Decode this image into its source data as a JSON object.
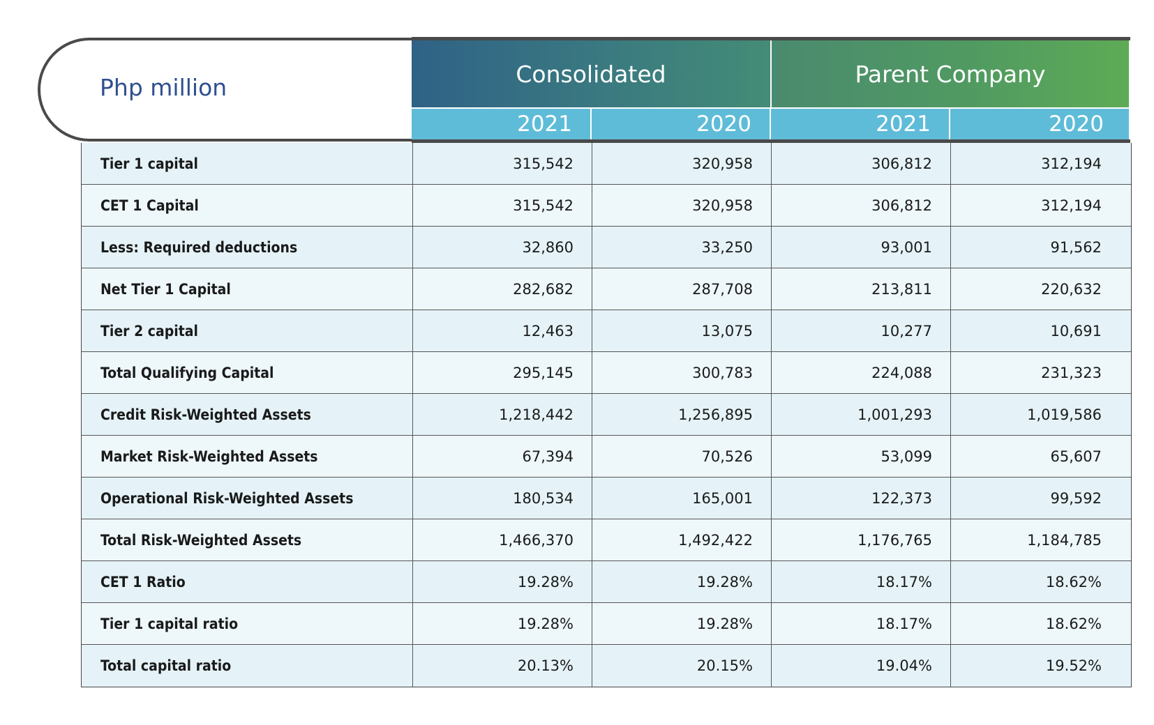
{
  "header": {
    "unit_label": "Php million",
    "groups": [
      "Consolidated",
      "Parent Company"
    ],
    "years": [
      "2021",
      "2020",
      "2021",
      "2020"
    ]
  },
  "rows": [
    {
      "label": "Tier 1 capital",
      "values": [
        "315,542",
        "320,958",
        "306,812",
        "312,194"
      ]
    },
    {
      "label": "CET 1 Capital",
      "values": [
        "315,542",
        "320,958",
        "306,812",
        "312,194"
      ]
    },
    {
      "label": "Less: Required deductions",
      "values": [
        "32,860",
        "33,250",
        "93,001",
        "91,562"
      ]
    },
    {
      "label": "Net Tier 1 Capital",
      "values": [
        "282,682",
        "287,708",
        "213,811",
        "220,632"
      ]
    },
    {
      "label": "Tier 2 capital",
      "values": [
        "12,463",
        "13,075",
        "10,277",
        "10,691"
      ]
    },
    {
      "label": "Total Qualifying Capital",
      "values": [
        "295,145",
        "300,783",
        "224,088",
        "231,323"
      ]
    },
    {
      "label": "Credit Risk-Weighted Assets",
      "values": [
        "1,218,442",
        "1,256,895",
        "1,001,293",
        "1,019,586"
      ]
    },
    {
      "label": "Market Risk-Weighted Assets",
      "values": [
        "67,394",
        "70,526",
        "53,099",
        "65,607"
      ]
    },
    {
      "label": "Operational Risk-Weighted Assets",
      "values": [
        "180,534",
        "165,001",
        "122,373",
        "99,592"
      ]
    },
    {
      "label": "Total Risk-Weighted Assets",
      "values": [
        "1,466,370",
        "1,492,422",
        "1,176,765",
        "1,184,785"
      ]
    },
    {
      "label": "CET 1 Ratio",
      "values": [
        "19.28%",
        "19.28%",
        "18.17%",
        "18.62%"
      ]
    },
    {
      "label": "Tier 1 capital ratio",
      "values": [
        "19.28%",
        "19.28%",
        "18.17%",
        "18.62%"
      ]
    },
    {
      "label": "Total capital ratio",
      "values": [
        "20.13%",
        "20.15%",
        "19.04%",
        "19.52%"
      ]
    }
  ],
  "colors": {
    "unit_label": "#2f4f8f",
    "year_band": "#5fbcd8",
    "consolidated_start": "#2f6286",
    "parent_end": "#5eab55",
    "row_fill": "#e5f3f8"
  }
}
